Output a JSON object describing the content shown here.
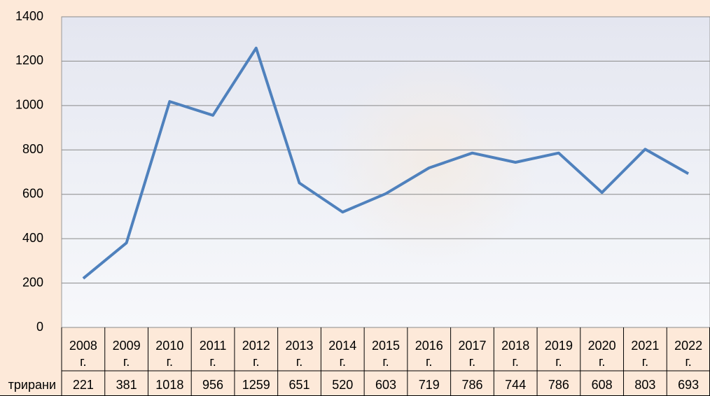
{
  "chart_data": {
    "type": "line",
    "categories": [
      "2008 г.",
      "2009 г.",
      "2010 г.",
      "2011 г.",
      "2012 г.",
      "2013 г.",
      "2014 г.",
      "2015 г.",
      "2016 г.",
      "2017 г.",
      "2018 г.",
      "2019 г.",
      "2020 г.",
      "2021 г.",
      "2022 г."
    ],
    "series": [
      {
        "name": "трирани",
        "color": "#4f81bd",
        "values": [
          221,
          381,
          1018,
          956,
          1259,
          651,
          520,
          603,
          719,
          786,
          744,
          786,
          608,
          803,
          693
        ]
      }
    ],
    "ylim": [
      0,
      1400
    ],
    "yticks": [
      0,
      200,
      400,
      600,
      800,
      1000,
      1200,
      1400
    ],
    "grid": true,
    "data_table": true
  }
}
